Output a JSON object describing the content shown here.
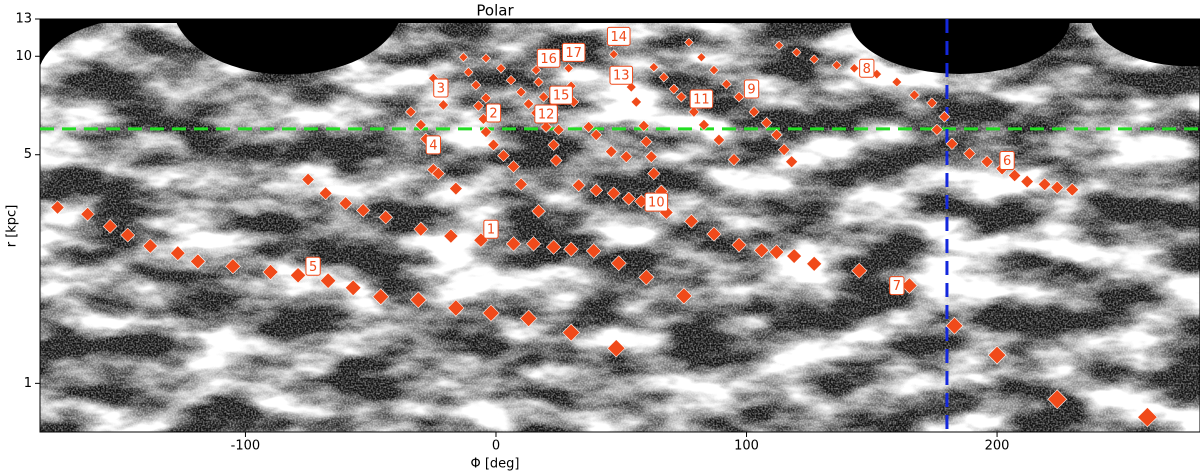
{
  "chart_data": {
    "type": "scatter",
    "title": "Polar",
    "x_label": "Φ [deg]",
    "y_label": "r [kpc]",
    "xlim": [
      -182,
      281
    ],
    "ylim": [
      0.71,
      13
    ],
    "ylog": true,
    "xticks": [
      -100,
      0,
      100,
      200
    ],
    "yticks": [
      1,
      5,
      10,
      13
    ],
    "color": "#f04a1a",
    "x": [
      -175,
      -163,
      -154,
      -147,
      -138,
      -127,
      -119,
      -105,
      -90,
      -79,
      -67,
      -57,
      -46,
      -31,
      -16,
      -2,
      13,
      30,
      48,
      -75,
      -68,
      -60,
      -53,
      -44,
      -30,
      -18,
      -6,
      7,
      15,
      23,
      30,
      39,
      49,
      60,
      75,
      -34,
      -30,
      -28,
      -25,
      -23,
      -16,
      -7,
      -5,
      -4,
      -1,
      3,
      7,
      10,
      17,
      23,
      24,
      33,
      40,
      47,
      53,
      58,
      68,
      78,
      87,
      97,
      106,
      112,
      119,
      127,
      145,
      165,
      -25,
      -23,
      -21,
      -13,
      -11,
      -8,
      -4,
      -4,
      2,
      6,
      10,
      13,
      16,
      20,
      25,
      16,
      17,
      19,
      23,
      29,
      30,
      31,
      37,
      40,
      46,
      52,
      46,
      47,
      50,
      54,
      56,
      59,
      60,
      62,
      63,
      66,
      63,
      67,
      71,
      74,
      79,
      83,
      89,
      95,
      77,
      82,
      87,
      92,
      97,
      103,
      108,
      112,
      115,
      118,
      113,
      120,
      127,
      136,
      143,
      152,
      160,
      167,
      174,
      179,
      176,
      182,
      189,
      196,
      202,
      207,
      212,
      219,
      224,
      230,
      183,
      200,
      224,
      260
    ],
    "values": [
      3.45,
      3.29,
      3.02,
      2.84,
      2.63,
      2.5,
      2.36,
      2.28,
      2.19,
      2.14,
      2.06,
      1.96,
      1.84,
      1.8,
      1.7,
      1.64,
      1.58,
      1.43,
      1.28,
      4.2,
      3.81,
      3.55,
      3.38,
      3.22,
      2.96,
      2.82,
      2.74,
      2.67,
      2.67,
      2.61,
      2.57,
      2.54,
      2.33,
      2.11,
      1.85,
      6.76,
      6.17,
      5.59,
      4.5,
      4.38,
      3.94,
      7.05,
      6.43,
      5.87,
      5.36,
      4.97,
      4.6,
      4.06,
      3.36,
      5.36,
      4.8,
      4.03,
      3.89,
      3.81,
      3.67,
      3.6,
      3.33,
      3.13,
      2.86,
      2.65,
      2.55,
      2.52,
      2.45,
      2.32,
      2.21,
      1.99,
      8.57,
      7.77,
      7.1,
      9.93,
      8.94,
      8.16,
      7.45,
      9.86,
      9.19,
      8.45,
      7.77,
      7.15,
      6.71,
      6.08,
      5.96,
      9.07,
      8.34,
      7.51,
      6.62,
      9.19,
      8.11,
      7.25,
      6.08,
      5.75,
      5.11,
      4.93,
      11.03,
      10.14,
      8.94,
      8.05,
      7.25,
      6.13,
      5.48,
      4.93,
      4.38,
      3.86,
      9.26,
      8.63,
      7.94,
      7.51,
      6.76,
      6.17,
      5.55,
      4.83,
      11.03,
      9.93,
      9.07,
      8.22,
      7.51,
      6.76,
      6.26,
      5.75,
      5.18,
      4.76,
      10.8,
      10.28,
      9.79,
      9.39,
      9.19,
      8.82,
      8.34,
      7.61,
      7.2,
      6.53,
      5.96,
      5.4,
      5.04,
      4.76,
      4.53,
      4.32,
      4.14,
      4.06,
      3.97,
      3.91,
      1.5,
      1.22,
      0.894,
      0.788
    ],
    "hlines": [
      {
        "value": 6,
        "color": "#22dd22"
      }
    ],
    "vlines": [
      {
        "value": 180,
        "color": "#1428dc"
      }
    ],
    "annotations": [
      {
        "text": "1",
        "x": -2,
        "y": 2.96
      },
      {
        "text": "2",
        "x": -1,
        "y": 6.71
      },
      {
        "text": "3",
        "x": -22,
        "y": 8.0
      },
      {
        "text": "4",
        "x": -25,
        "y": 5.36
      },
      {
        "text": "5",
        "x": -73,
        "y": 2.28
      },
      {
        "text": "6",
        "x": 204,
        "y": 4.8
      },
      {
        "text": "7",
        "x": 160,
        "y": 1.99
      },
      {
        "text": "8",
        "x": 148,
        "y": 9.19
      },
      {
        "text": "9",
        "x": 102,
        "y": 7.94
      },
      {
        "text": "10",
        "x": 64,
        "y": 3.58
      },
      {
        "text": "11",
        "x": 82,
        "y": 7.4
      },
      {
        "text": "12",
        "x": 20,
        "y": 6.66
      },
      {
        "text": "13",
        "x": 50,
        "y": 8.75
      },
      {
        "text": "14",
        "x": 49,
        "y": 11.5
      },
      {
        "text": "15",
        "x": 26,
        "y": 7.61
      },
      {
        "text": "16",
        "x": 21,
        "y": 9.86
      },
      {
        "text": "17",
        "x": 31,
        "y": 10.28
      }
    ]
  }
}
